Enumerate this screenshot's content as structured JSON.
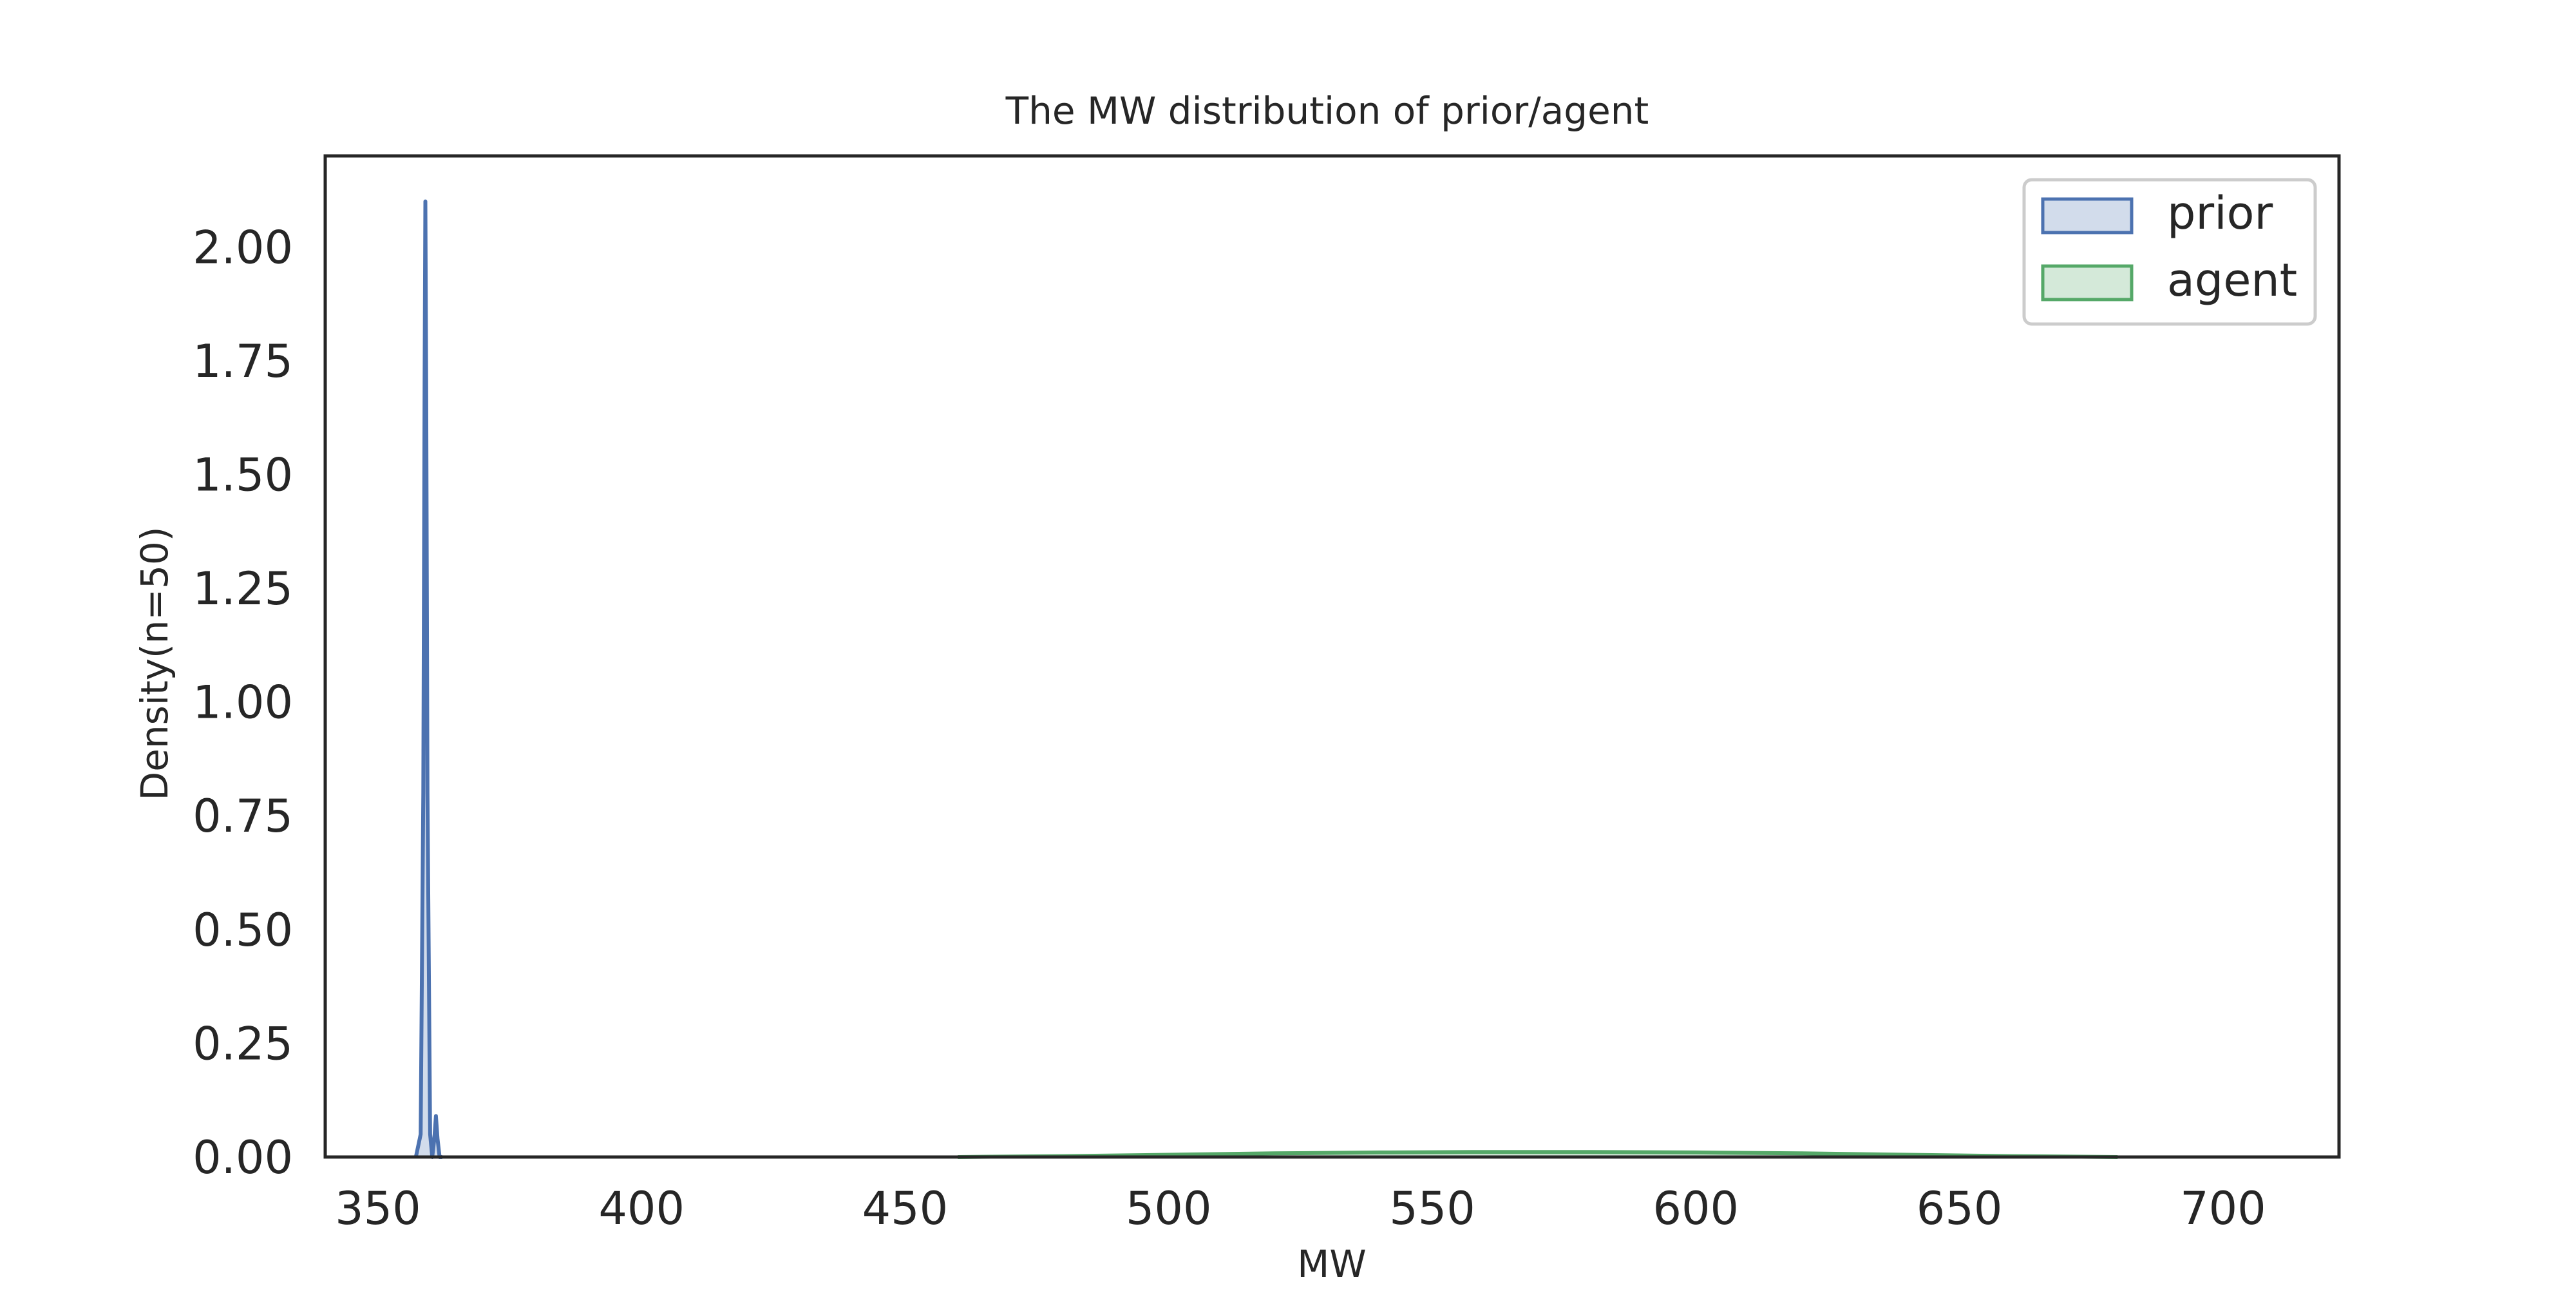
{
  "chart_data": {
    "type": "area",
    "title": "The MW distribution of prior/agent",
    "xlabel": "MW",
    "ylabel": "Density(n=50)",
    "xlim": [
      340,
      722
    ],
    "ylim": [
      0,
      2.2
    ],
    "xticks": [
      350,
      400,
      450,
      500,
      550,
      600,
      650,
      700
    ],
    "yticks": [
      0.0,
      0.25,
      0.5,
      0.75,
      1.0,
      1.25,
      1.5,
      1.75,
      2.0
    ],
    "xtick_labels": [
      "350",
      "400",
      "450",
      "500",
      "550",
      "600",
      "650",
      "700"
    ],
    "ytick_labels": [
      "0.00",
      "0.25",
      "0.50",
      "0.75",
      "1.00",
      "1.25",
      "1.50",
      "1.75",
      "2.00"
    ],
    "grid": false,
    "legend_position": "top-right",
    "series": [
      {
        "name": "prior",
        "color": "#4c72b0",
        "x": [
          357.2,
          358.1,
          358.6,
          358.85,
          359.0,
          359.15,
          359.4,
          359.9,
          360.3,
          360.7,
          361.0,
          361.3,
          361.7,
          362.2
        ],
        "y": [
          0.0,
          0.05,
          0.8,
          1.7,
          2.1,
          1.7,
          0.8,
          0.05,
          0.0,
          0.04,
          0.09,
          0.04,
          0.0,
          0.0
        ]
      },
      {
        "name": "agent",
        "color": "#55a868",
        "x": [
          460,
          480,
          500,
          520,
          540,
          560,
          580,
          600,
          620,
          640,
          660,
          680
        ],
        "y": [
          0.0,
          0.002,
          0.005,
          0.008,
          0.01,
          0.011,
          0.011,
          0.01,
          0.008,
          0.005,
          0.002,
          0.0
        ]
      }
    ]
  }
}
